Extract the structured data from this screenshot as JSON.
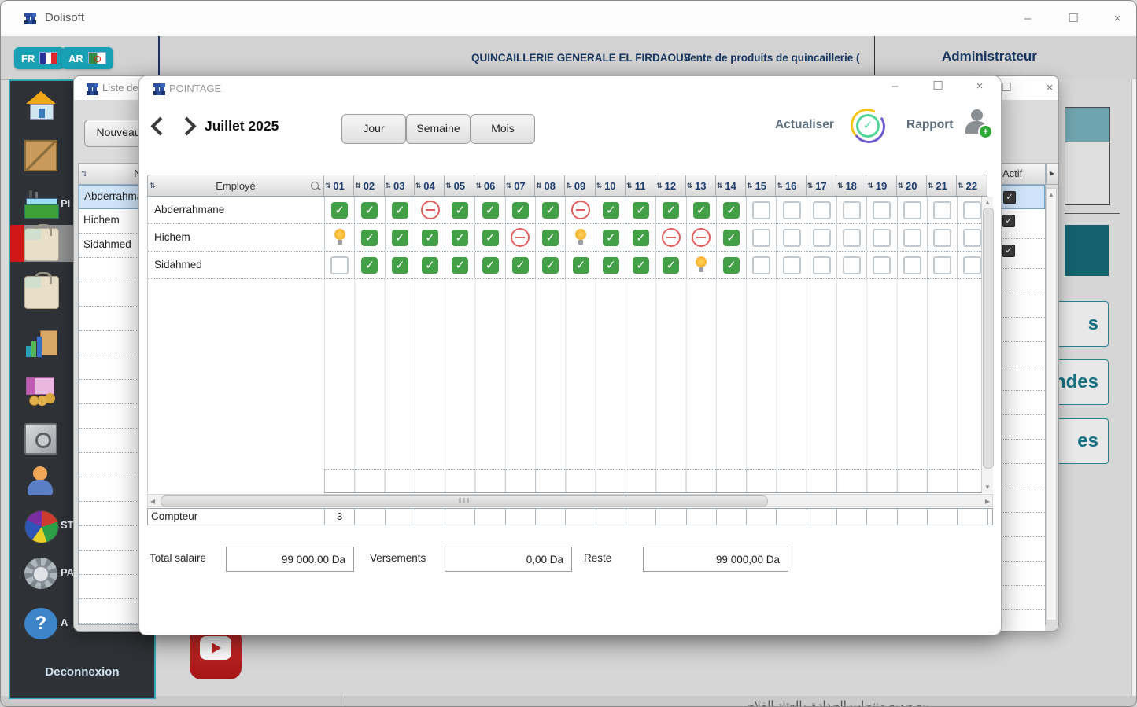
{
  "colors": {
    "teal_accent": "#18a0b4",
    "navy_text": "#17355e",
    "check_green": "#43a047",
    "absent_red": "#e06060",
    "idea_orange": "#f5a623",
    "dashboard_dark_teal": "#15616d",
    "dashboard_light_teal": "#6fa3ad",
    "sidebar_select_red": "#cf1717"
  },
  "app": {
    "title": "Dolisoft",
    "window_controls": {
      "minimize": "–",
      "maximize": "☐",
      "close": "×"
    }
  },
  "header": {
    "lang_fr": "FR",
    "lang_ar": "AR",
    "company": "QUINCAILLERIE GENERALE EL FIRDAOUS",
    "tagline": "Vente de produits de quincaillerie (",
    "user": "Administrateur"
  },
  "sidebar": {
    "label_fragments": {
      "production": "PI",
      "stats": "ST",
      "params": "PA",
      "about": "A"
    },
    "logout": "Deconnexion"
  },
  "list_window": {
    "title": "Liste des",
    "new_button": "Nouveau",
    "name_header": "Nom",
    "actif_header": "Actif",
    "rows": [
      "Abderrahmane",
      "Hichem",
      "Sidahmed"
    ]
  },
  "dashboard": {
    "button_fragments": [
      "s",
      "ndes",
      "es"
    ]
  },
  "pointage": {
    "title": "POINTAGE",
    "month_label": "Juillet 2025",
    "views": [
      "Jour",
      "Semaine",
      "Mois"
    ],
    "refresh_label": "Actualiser",
    "report_label": "Rapport",
    "table": {
      "employee_header": "Employé",
      "days": [
        "01",
        "02",
        "03",
        "04",
        "05",
        "06",
        "07",
        "08",
        "09",
        "10",
        "11",
        "12",
        "13",
        "14",
        "15",
        "16",
        "17",
        "18",
        "19",
        "20",
        "21",
        "22"
      ],
      "rows": [
        {
          "name": "Abderrahmane",
          "states": [
            "check",
            "check",
            "check",
            "absent",
            "check",
            "check",
            "check",
            "check",
            "absent",
            "check",
            "check",
            "check",
            "check",
            "check",
            "empty",
            "empty",
            "empty",
            "empty",
            "empty",
            "empty",
            "empty",
            "empty"
          ]
        },
        {
          "name": "Hichem",
          "states": [
            "idea",
            "check",
            "check",
            "check",
            "check",
            "check",
            "absent",
            "check",
            "idea",
            "check",
            "check",
            "absent",
            "absent",
            "check",
            "empty",
            "empty",
            "empty",
            "empty",
            "empty",
            "empty",
            "empty",
            "empty"
          ]
        },
        {
          "name": "Sidahmed",
          "states": [
            "empty",
            "check",
            "check",
            "check",
            "check",
            "check",
            "check",
            "check",
            "check",
            "check",
            "check",
            "check",
            "idea",
            "check",
            "empty",
            "empty",
            "empty",
            "empty",
            "empty",
            "empty",
            "empty",
            "empty"
          ]
        }
      ],
      "counter_label": "Compteur",
      "counter_values": [
        "3",
        "",
        "",
        "",
        "",
        "",
        "",
        "",
        "",
        "",
        "",
        "",
        "",
        "",
        "",
        "",
        "",
        "",
        "",
        "",
        "",
        ""
      ]
    },
    "totals": {
      "salary_label": "Total salaire",
      "salary_value": "99 000,00 Da",
      "payments_label": "Versements",
      "payments_value": "0,00 Da",
      "rest_label": "Reste",
      "rest_value": "99 000,00 Da"
    }
  },
  "footer": {
    "arabic_text": "بيع جميع منتجات الحدادة والعتاد الفلاحي"
  }
}
